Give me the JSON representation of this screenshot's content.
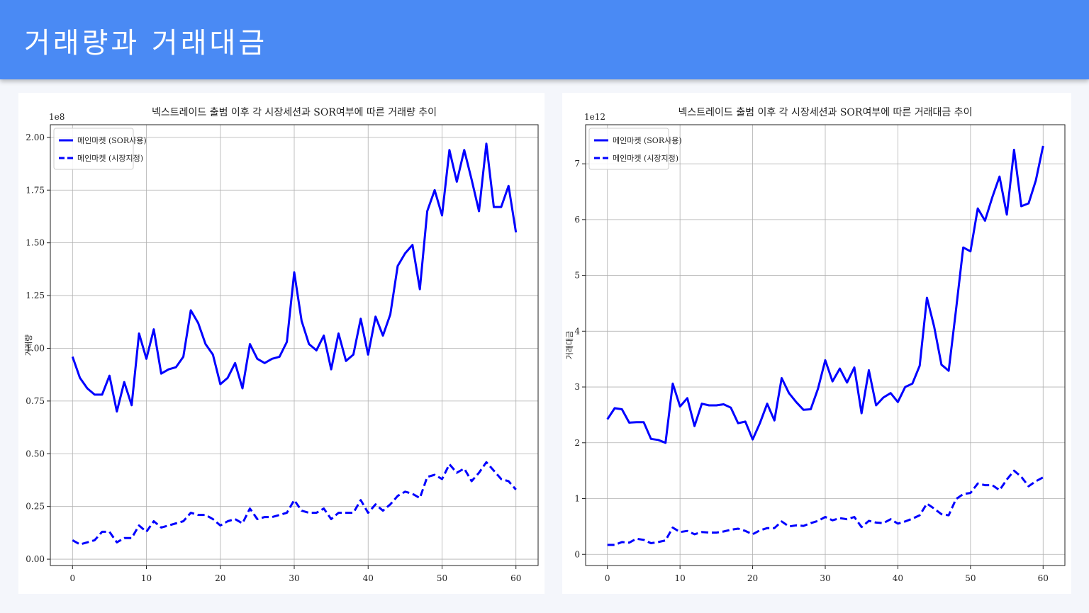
{
  "header": {
    "title": "거래량과 거래대금"
  },
  "colors": {
    "header_bg": "#4a8af4",
    "line": "#0000ff",
    "grid": "#b0b0b0"
  },
  "chart_data": [
    {
      "type": "line",
      "title": "넥스트레이드 출범 이후 각 시장세션과 SOR여부에 따른 거래량 추이",
      "xlabel": "",
      "ylabel": "거래량",
      "y_multiplier_label": "1e8",
      "xlim": [
        -3,
        63
      ],
      "ylim": [
        -0.03,
        2.06
      ],
      "xticks": [
        "0",
        "10",
        "20",
        "30",
        "40",
        "50",
        "60"
      ],
      "yticks": [
        "0.00",
        "0.25",
        "0.50",
        "0.75",
        "1.00",
        "1.25",
        "1.50",
        "1.75",
        "2.00"
      ],
      "grid": true,
      "legend_position": "top-left",
      "series": [
        {
          "name": "메인마켓 (SOR사용)",
          "style": "solid",
          "values": [
            0.96,
            0.86,
            0.81,
            0.78,
            0.78,
            0.87,
            0.7,
            0.84,
            0.73,
            1.07,
            0.95,
            1.09,
            0.88,
            0.9,
            0.91,
            0.96,
            1.18,
            1.12,
            1.02,
            0.97,
            0.83,
            0.86,
            0.93,
            0.81,
            1.02,
            0.95,
            0.93,
            0.95,
            0.96,
            1.03,
            1.36,
            1.13,
            1.02,
            0.99,
            1.06,
            0.9,
            1.07,
            0.94,
            0.97,
            1.14,
            0.97,
            1.15,
            1.06,
            1.16,
            1.39,
            1.45,
            1.49,
            1.28,
            1.65,
            1.75,
            1.63,
            1.94,
            1.79,
            1.94,
            1.8,
            1.65,
            1.97,
            1.67,
            1.67,
            1.77,
            1.55
          ]
        },
        {
          "name": "메인마켓 (시장지정)",
          "style": "dashed",
          "values": [
            0.09,
            0.07,
            0.08,
            0.09,
            0.13,
            0.13,
            0.08,
            0.1,
            0.1,
            0.16,
            0.13,
            0.18,
            0.15,
            0.16,
            0.17,
            0.18,
            0.22,
            0.21,
            0.21,
            0.19,
            0.16,
            0.18,
            0.19,
            0.17,
            0.24,
            0.19,
            0.2,
            0.2,
            0.21,
            0.22,
            0.28,
            0.23,
            0.22,
            0.22,
            0.24,
            0.19,
            0.22,
            0.22,
            0.22,
            0.28,
            0.22,
            0.26,
            0.23,
            0.26,
            0.3,
            0.32,
            0.31,
            0.29,
            0.39,
            0.4,
            0.38,
            0.45,
            0.41,
            0.43,
            0.37,
            0.41,
            0.46,
            0.42,
            0.38,
            0.37,
            0.33
          ]
        }
      ]
    },
    {
      "type": "line",
      "title": "넥스트레이드 출범 이후 각 시장세션과 SOR여부에 따른 거래대금 추이",
      "xlabel": "",
      "ylabel": "거래대금",
      "y_multiplier_label": "1e12",
      "xlim": [
        -3,
        63
      ],
      "ylim": [
        -0.2,
        7.7
      ],
      "xticks": [
        "0",
        "10",
        "20",
        "30",
        "40",
        "50",
        "60"
      ],
      "yticks": [
        "0",
        "1",
        "2",
        "3",
        "4",
        "5",
        "6",
        "7"
      ],
      "grid": true,
      "legend_position": "top-left",
      "series": [
        {
          "name": "메인마켓 (SOR사용)",
          "style": "solid",
          "values": [
            2.42,
            2.62,
            2.6,
            2.36,
            2.37,
            2.37,
            2.07,
            2.05,
            2.0,
            3.06,
            2.65,
            2.8,
            2.3,
            2.7,
            2.67,
            2.67,
            2.69,
            2.63,
            2.35,
            2.38,
            2.06,
            2.35,
            2.7,
            2.4,
            3.16,
            2.89,
            2.73,
            2.59,
            2.6,
            2.97,
            3.48,
            3.1,
            3.33,
            3.08,
            3.35,
            2.53,
            3.3,
            2.67,
            2.81,
            2.89,
            2.73,
            3.0,
            3.06,
            3.38,
            4.6,
            4.08,
            3.4,
            3.29,
            4.38,
            5.5,
            5.43,
            6.2,
            5.98,
            6.4,
            6.77,
            6.09,
            7.25,
            6.24,
            6.29,
            6.7,
            7.32
          ]
        },
        {
          "name": "메인마켓 (시장지정)",
          "style": "dashed",
          "values": [
            0.17,
            0.17,
            0.22,
            0.21,
            0.28,
            0.26,
            0.2,
            0.22,
            0.25,
            0.48,
            0.4,
            0.42,
            0.36,
            0.4,
            0.39,
            0.39,
            0.41,
            0.44,
            0.46,
            0.42,
            0.36,
            0.43,
            0.47,
            0.47,
            0.59,
            0.5,
            0.52,
            0.51,
            0.56,
            0.6,
            0.67,
            0.61,
            0.65,
            0.63,
            0.67,
            0.49,
            0.6,
            0.57,
            0.56,
            0.63,
            0.55,
            0.59,
            0.64,
            0.7,
            0.91,
            0.82,
            0.72,
            0.7,
            0.99,
            1.08,
            1.1,
            1.27,
            1.24,
            1.24,
            1.15,
            1.34,
            1.5,
            1.39,
            1.22,
            1.31,
            1.38
          ]
        }
      ]
    }
  ]
}
